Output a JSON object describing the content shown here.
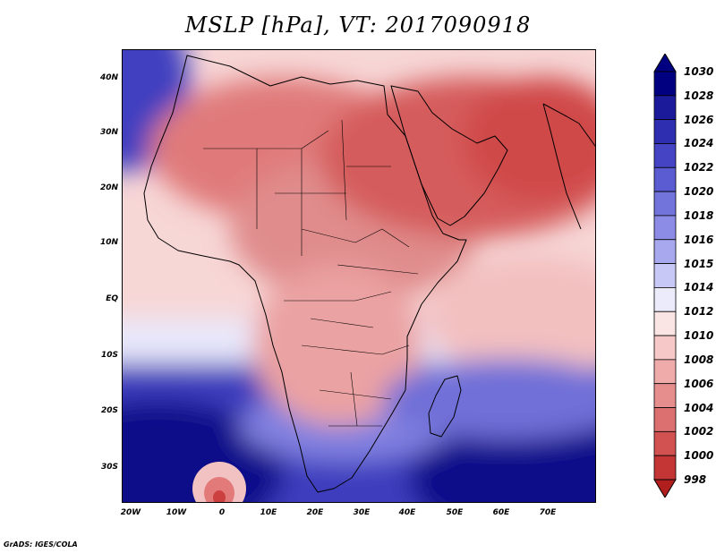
{
  "title": "MSLP [hPa], VT: 2017090918",
  "footer": "GrADS: IGES/COLA",
  "map": {
    "region": "Africa and Middle East",
    "variable": "Mean sea level pressure",
    "units": "hPa",
    "valid_time": "2017090918",
    "lon_range": [
      -25,
      80
    ],
    "lat_range": [
      -37,
      45
    ],
    "lat_ticks": [
      {
        "value": 40,
        "label": "40N"
      },
      {
        "value": 30,
        "label": "30N"
      },
      {
        "value": 20,
        "label": "20N"
      },
      {
        "value": 10,
        "label": "10N"
      },
      {
        "value": 0,
        "label": "EQ"
      },
      {
        "value": -10,
        "label": "10S"
      },
      {
        "value": -20,
        "label": "20S"
      },
      {
        "value": -30,
        "label": "30S"
      }
    ],
    "lon_ticks": [
      {
        "value": -20,
        "label": "20W"
      },
      {
        "value": -10,
        "label": "10W"
      },
      {
        "value": 0,
        "label": "0"
      },
      {
        "value": 10,
        "label": "10E"
      },
      {
        "value": 20,
        "label": "20E"
      },
      {
        "value": 30,
        "label": "30E"
      },
      {
        "value": 40,
        "label": "40E"
      },
      {
        "value": 50,
        "label": "50E"
      },
      {
        "value": 60,
        "label": "60E"
      },
      {
        "value": 70,
        "label": "70E"
      }
    ]
  },
  "colorbar": {
    "levels": [
      {
        "label": "1030",
        "color": "#000080"
      },
      {
        "label": "1028",
        "color": "#1a1a9a"
      },
      {
        "label": "1026",
        "color": "#2e2eb0"
      },
      {
        "label": "1024",
        "color": "#4444c4"
      },
      {
        "label": "1022",
        "color": "#5c5cd2"
      },
      {
        "label": "1020",
        "color": "#7373dc"
      },
      {
        "label": "1018",
        "color": "#8c8ce6"
      },
      {
        "label": "1016",
        "color": "#a8a8ef"
      },
      {
        "label": "1015",
        "color": "#c8c8f6"
      },
      {
        "label": "1014",
        "color": "#ebebfc"
      },
      {
        "label": "1012",
        "color": "#fbe4e4"
      },
      {
        "label": "1010",
        "color": "#f6c8c8"
      },
      {
        "label": "1008",
        "color": "#efaaaa"
      },
      {
        "label": "1006",
        "color": "#e68e8e"
      },
      {
        "label": "1004",
        "color": "#dc7070"
      },
      {
        "label": "1002",
        "color": "#d25252"
      },
      {
        "label": "1000",
        "color": "#c43636"
      },
      {
        "label": "998",
        "color": "#b01e1e"
      }
    ]
  }
}
